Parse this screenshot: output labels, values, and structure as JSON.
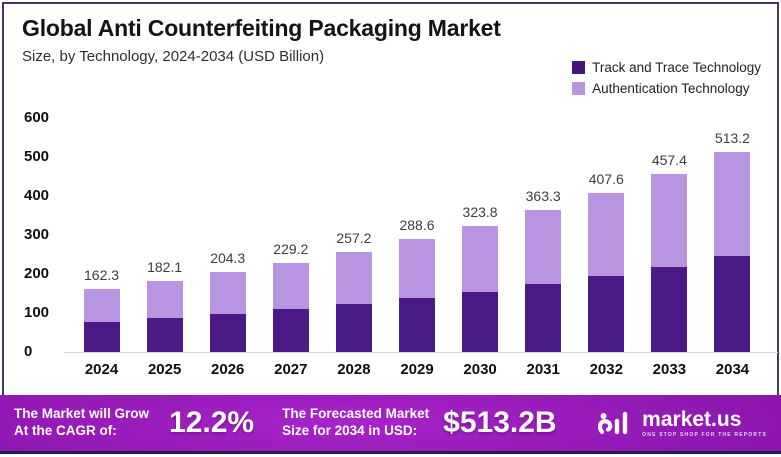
{
  "header": {
    "title": "Global Anti Counterfeiting Packaging Market",
    "subtitle": "Size, by Technology, 2024-2034 (USD Billion)"
  },
  "legend": [
    {
      "label": "Track and Trace Technology",
      "color": "#45177e"
    },
    {
      "label": "Authentication Technology",
      "color": "#b795e0"
    }
  ],
  "chart_data": {
    "type": "bar",
    "stacked": true,
    "title": "Global Anti Counterfeiting Packaging Market",
    "subtitle": "Size, by Technology, 2024-2034 (USD Billion)",
    "xlabel": "",
    "ylabel": "",
    "ylim": [
      0,
      600
    ],
    "yticks": [
      0,
      100,
      200,
      300,
      400,
      500,
      600
    ],
    "grid": false,
    "legend_position": "top-right",
    "categories": [
      "2024",
      "2025",
      "2026",
      "2027",
      "2028",
      "2029",
      "2030",
      "2031",
      "2032",
      "2033",
      "2034"
    ],
    "totals": [
      162.3,
      182.1,
      204.3,
      229.2,
      257.2,
      288.6,
      323.8,
      363.3,
      407.6,
      457.4,
      513.2
    ],
    "total_labels": [
      "162.3",
      "182.1",
      "204.3",
      "229.2",
      "257.2",
      "288.6",
      "323.8",
      "363.3",
      "407.6",
      "457.4",
      "513.2"
    ],
    "series": [
      {
        "name": "Track and Trace Technology",
        "color": "#4a1a87",
        "values": [
          77.6,
          87.1,
          97.7,
          109.6,
          123.0,
          138.0,
          154.8,
          173.7,
          194.9,
          217.4,
          245.3
        ]
      },
      {
        "name": "Authentication Technology",
        "color": "#b795e0",
        "values": [
          84.7,
          95.0,
          106.6,
          119.6,
          134.2,
          150.6,
          169.0,
          189.6,
          212.7,
          240.0,
          267.9
        ]
      }
    ]
  },
  "footer": {
    "cagr_line1": "The Market will Grow",
    "cagr_line2": "At the CAGR of:",
    "cagr_value": "12.2%",
    "forecast_line1": "The Forecasted Market",
    "forecast_line2": "Size for 2034 in USD:",
    "forecast_value": "$513.2B",
    "brand_name": "market.us",
    "brand_tagline": "ONE STOP SHOP FOR THE REPORTS"
  },
  "colors": {
    "track_and_trace": "#4a1a87",
    "authentication": "#b795e0",
    "card_border": "#4a3566",
    "banner_center": "#a923cb",
    "banner_edge": "#650b87",
    "navy_strip": "#20204f",
    "baseline": "#d9d9d9"
  }
}
